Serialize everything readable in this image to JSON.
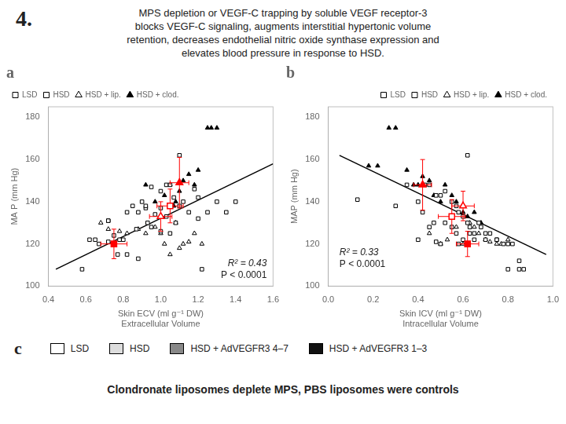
{
  "title": "4.",
  "subtitle": [
    "MPS depletion or VEGF-C trapping by soluble VEGF receptor-3",
    "blocks VEGF-C signaling, augments interstitial hypertonic volume",
    "retention, decreases endothelial nitric oxide synthase expression and",
    "elevates blood pressure in response to HSD."
  ],
  "chart_data": [
    {
      "type": "scatter",
      "label": "a",
      "xlabel": [
        "Skin ECV (ml g⁻¹ DW)",
        "Extracellular Volume"
      ],
      "ylabel": "MA P (mm Hg)",
      "xlim": [
        0.4,
        1.6
      ],
      "ylim": [
        100,
        185
      ],
      "xticks": [
        0.4,
        0.6,
        0.8,
        {
          "value": 1,
          "label": "1.0"
        },
        1.2,
        1.4,
        1.6
      ],
      "yticks": [
        100,
        120,
        140,
        160,
        180
      ],
      "grid": false,
      "legend": "upper left",
      "annotations": [
        "R² = 0.43",
        "P < 0.0001"
      ],
      "series": [
        {
          "name": "LSD",
          "type": "scatter",
          "marker": "square_open",
          "color": "#000000",
          "values": [
            [
              0.58,
              108
            ],
            [
              0.62,
              122
            ],
            [
              0.65,
              122
            ],
            [
              0.67,
              120
            ],
            [
              0.72,
              131
            ],
            [
              0.72,
              121
            ],
            [
              0.75,
              124
            ],
            [
              0.77,
              115
            ],
            [
              0.8,
              122
            ],
            [
              0.82,
              115
            ],
            [
              0.87,
              127
            ],
            [
              0.88,
              113
            ],
            [
              0.92,
              138
            ],
            [
              0.93,
              130
            ],
            [
              0.95,
              128
            ],
            [
              0.97,
              134
            ],
            [
              1.0,
              126
            ],
            [
              1.03,
              133
            ],
            [
              1.05,
              125
            ],
            [
              1.08,
              130
            ],
            [
              1.1,
              162
            ],
            [
              1.2,
              132
            ],
            [
              1.22,
              108
            ],
            [
              1.4,
              140
            ]
          ]
        },
        {
          "name": "HSD",
          "type": "scatter",
          "marker": "square_open",
          "color": "#000000",
          "values": [
            [
              0.72,
              131
            ],
            [
              0.78,
              122
            ],
            [
              0.82,
              135
            ],
            [
              0.85,
              138
            ],
            [
              0.88,
              135
            ],
            [
              0.9,
              140
            ],
            [
              0.92,
              137
            ],
            [
              0.95,
              147
            ],
            [
              1.0,
              145
            ],
            [
              1.0,
              137
            ],
            [
              1.03,
              148
            ],
            [
              1.05,
              148
            ],
            [
              1.07,
              142
            ],
            [
              1.1,
              138
            ],
            [
              1.12,
              140
            ],
            [
              1.15,
              135
            ],
            [
              1.18,
              146
            ],
            [
              1.2,
              142
            ],
            [
              1.25,
              135
            ],
            [
              1.3,
              140
            ],
            [
              1.35,
              135
            ]
          ]
        },
        {
          "name": "HSD + lip.",
          "type": "scatter",
          "marker": "triangle_open",
          "color": "#000000",
          "values": [
            [
              0.68,
              130
            ],
            [
              0.72,
              127
            ],
            [
              0.78,
              126
            ],
            [
              0.82,
              125
            ],
            [
              0.88,
              127
            ],
            [
              0.92,
              125
            ],
            [
              0.97,
              128
            ],
            [
              1.0,
              125
            ],
            [
              1.02,
              120
            ],
            [
              1.05,
              115
            ],
            [
              1.08,
              130
            ],
            [
              1.1,
              118
            ],
            [
              1.12,
              120
            ],
            [
              1.15,
              121
            ],
            [
              1.18,
              125
            ],
            [
              1.22,
              120
            ]
          ]
        },
        {
          "name": "HSD + clod.",
          "type": "scatter",
          "marker": "triangle_filled",
          "color": "#000000",
          "values": [
            [
              0.92,
              148
            ],
            [
              0.97,
              140
            ],
            [
              1.02,
              143
            ],
            [
              1.05,
              148
            ],
            [
              1.07,
              138
            ],
            [
              1.08,
              140
            ],
            [
              1.1,
              145
            ],
            [
              1.12,
              150
            ],
            [
              1.15,
              153
            ],
            [
              1.18,
              148
            ],
            [
              1.2,
              155
            ],
            [
              1.25,
              175
            ],
            [
              1.27,
              175
            ],
            [
              1.3,
              175
            ]
          ]
        },
        {
          "type": "line",
          "color": "#000000",
          "values": [
            [
              0.44,
              108
            ],
            [
              1.6,
              158
            ]
          ]
        },
        {
          "type": "scatter",
          "marker": "square_filled",
          "color": "#ff0000",
          "values": [
            [
              0.75,
              120
            ]
          ],
          "xerr": [
            0.07
          ],
          "yerr": [
            7
          ]
        },
        {
          "type": "scatter",
          "marker": "square_open",
          "color": "#ff0000",
          "values": [
            [
              1.05,
              138
            ]
          ],
          "xerr": [
            0.07
          ],
          "yerr": [
            8
          ]
        },
        {
          "type": "scatter",
          "marker": "triangle_open",
          "color": "#ff0000",
          "values": [
            [
              1.0,
              133
            ]
          ],
          "xerr": [
            0.06
          ],
          "yerr": [
            7
          ]
        },
        {
          "type": "scatter",
          "marker": "triangle_filled",
          "color": "#ff0000",
          "values": [
            [
              1.1,
              149
            ]
          ],
          "xerr": [
            0.05
          ],
          "yerr": [
            12
          ]
        }
      ]
    },
    {
      "type": "scatter",
      "label": "b",
      "xlabel": [
        "Skin ICV (ml g⁻¹ DW)",
        "Intracellular Volume"
      ],
      "ylabel": "MAP (mm Hg)",
      "xlim": [
        0.0,
        1.0
      ],
      "ylim": [
        100,
        185
      ],
      "xticks": [
        {
          "value": 0,
          "label": "0.0"
        },
        0.2,
        0.4,
        0.6,
        0.8,
        {
          "value": 1,
          "label": "1.0"
        }
      ],
      "yticks": [
        100,
        120,
        140,
        160,
        180
      ],
      "grid": false,
      "legend": "upper right",
      "annotations": [
        "R² = 0.33",
        "P < 0.0001"
      ],
      "series": [
        {
          "name": "LSD",
          "type": "scatter",
          "marker": "square_open",
          "color": "#000000",
          "values": [
            [
              0.13,
              141
            ],
            [
              0.3,
              138
            ],
            [
              0.4,
              122
            ],
            [
              0.42,
              135
            ],
            [
              0.45,
              128
            ],
            [
              0.47,
              130
            ],
            [
              0.48,
              121
            ],
            [
              0.5,
              120
            ],
            [
              0.52,
              130
            ],
            [
              0.55,
              128
            ],
            [
              0.57,
              125
            ],
            [
              0.58,
              120
            ],
            [
              0.6,
              122
            ],
            [
              0.62,
              162
            ],
            [
              0.63,
              125
            ],
            [
              0.65,
              122
            ],
            [
              0.68,
              128
            ],
            [
              0.7,
              125
            ],
            [
              0.75,
              122
            ],
            [
              0.8,
              108
            ],
            [
              0.85,
              112
            ],
            [
              0.87,
              108
            ]
          ]
        },
        {
          "name": "HSD",
          "type": "scatter",
          "marker": "square_open",
          "color": "#000000",
          "values": [
            [
              0.35,
              148
            ],
            [
              0.4,
              140
            ],
            [
              0.43,
              148
            ],
            [
              0.45,
              148
            ],
            [
              0.48,
              143
            ],
            [
              0.5,
              143
            ],
            [
              0.52,
              145
            ],
            [
              0.55,
              140
            ],
            [
              0.57,
              138
            ],
            [
              0.58,
              135
            ],
            [
              0.6,
              133
            ],
            [
              0.62,
              130
            ],
            [
              0.63,
              128
            ],
            [
              0.65,
              125
            ],
            [
              0.67,
              130
            ],
            [
              0.7,
              122
            ],
            [
              0.72,
              125
            ],
            [
              0.75,
              122
            ],
            [
              0.78,
              120
            ],
            [
              0.8,
              120
            ],
            [
              0.82,
              120
            ],
            [
              0.85,
              108
            ]
          ]
        },
        {
          "name": "HSD + lip.",
          "type": "scatter",
          "marker": "triangle_open",
          "color": "#000000",
          "values": [
            [
              0.45,
              125
            ],
            [
              0.5,
              120
            ],
            [
              0.53,
              122
            ],
            [
              0.57,
              128
            ],
            [
              0.6,
              120
            ],
            [
              0.63,
              130
            ],
            [
              0.65,
              128
            ],
            [
              0.67,
              125
            ],
            [
              0.7,
              122
            ],
            [
              0.72,
              121
            ],
            [
              0.75,
              120
            ],
            [
              0.77,
              120
            ],
            [
              0.8,
              122
            ]
          ]
        },
        {
          "name": "HSD + clod.",
          "type": "scatter",
          "marker": "triangle_filled",
          "color": "#000000",
          "values": [
            [
              0.18,
              157
            ],
            [
              0.22,
              157
            ],
            [
              0.27,
              175
            ],
            [
              0.3,
              175
            ],
            [
              0.35,
              155
            ],
            [
              0.38,
              148
            ],
            [
              0.4,
              148
            ],
            [
              0.42,
              152
            ],
            [
              0.45,
              150
            ],
            [
              0.47,
              143
            ],
            [
              0.5,
              140
            ],
            [
              0.52,
              148
            ],
            [
              0.55,
              143
            ],
            [
              0.57,
              140
            ],
            [
              0.6,
              135
            ],
            [
              0.62,
              133
            ],
            [
              0.65,
              135
            ],
            [
              0.68,
              130
            ]
          ]
        },
        {
          "type": "line",
          "color": "#000000",
          "values": [
            [
              0.05,
              162
            ],
            [
              0.97,
              115
            ]
          ]
        },
        {
          "type": "scatter",
          "marker": "square_filled",
          "color": "#ff0000",
          "values": [
            [
              0.62,
              120
            ]
          ],
          "xerr": [
            0.05
          ],
          "yerr": [
            6
          ]
        },
        {
          "type": "scatter",
          "marker": "square_open",
          "color": "#ff0000",
          "values": [
            [
              0.55,
              133
            ]
          ],
          "xerr": [
            0.06
          ],
          "yerr": [
            8
          ]
        },
        {
          "type": "scatter",
          "marker": "triangle_open",
          "color": "#ff0000",
          "values": [
            [
              0.6,
              138
            ]
          ],
          "xerr": [
            0.05
          ],
          "yerr": [
            7
          ]
        },
        {
          "type": "scatter",
          "marker": "triangle_filled",
          "color": "#ff0000",
          "values": [
            [
              0.42,
              148
            ]
          ],
          "xerr": [
            0.04
          ],
          "yerr": [
            12
          ]
        }
      ]
    }
  ],
  "color_key": {
    "label": "c",
    "items": [
      {
        "name": "LSD",
        "color": "#ffffff"
      },
      {
        "name": "HSD",
        "color": "#dddddd"
      },
      {
        "name": "HSD + AdVEGFR3 4–7",
        "color": "#888888"
      },
      {
        "name": "HSD + AdVEGFR3 1–3",
        "color": "#111111"
      }
    ]
  },
  "footnote": "Clondronate liposomes deplete MPS, PBS liposomes were controls"
}
